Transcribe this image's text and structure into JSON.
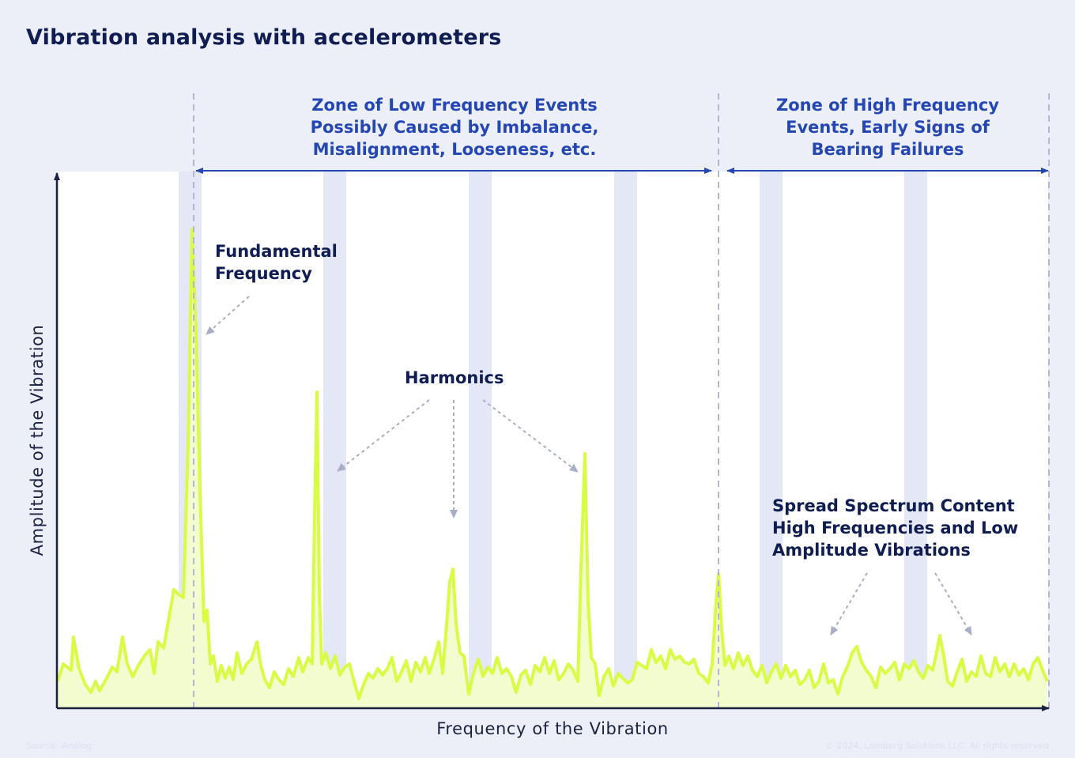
{
  "title": "Vibration analysis with accelerometers",
  "zones": {
    "low": [
      "Zone of Low Frequency Events",
      "Possibly Caused by Imbalance,",
      "Misalignment, Looseness, etc."
    ],
    "high": [
      "Zone of High Frequency",
      "Events, Early Signs of",
      "Bearing Failures"
    ]
  },
  "annotations": {
    "fundamental": [
      "Fundamental",
      "Frequency"
    ],
    "harmonics": "Harmonics",
    "spread": [
      "Spread Spectrum Content",
      "High Frequencies and Low",
      "Amplitude Vibrations"
    ]
  },
  "axes": {
    "x_label": "Frequency of the Vibration",
    "y_label": "Amplitude of the Vibration"
  },
  "source": "Source: Analog",
  "copyright": "© 2024, Lemberg Solutions LLC. All rights reserved",
  "colors": {
    "background": "#eceef8",
    "panel": "#ffffff",
    "band": "#e4e7f5",
    "signal_line": "#d8fc45",
    "signal_fill": "#f3fccf",
    "zone_text": "#2447b3",
    "annotation_text": "#0f1d52",
    "guide": "#a8aec8"
  }
}
